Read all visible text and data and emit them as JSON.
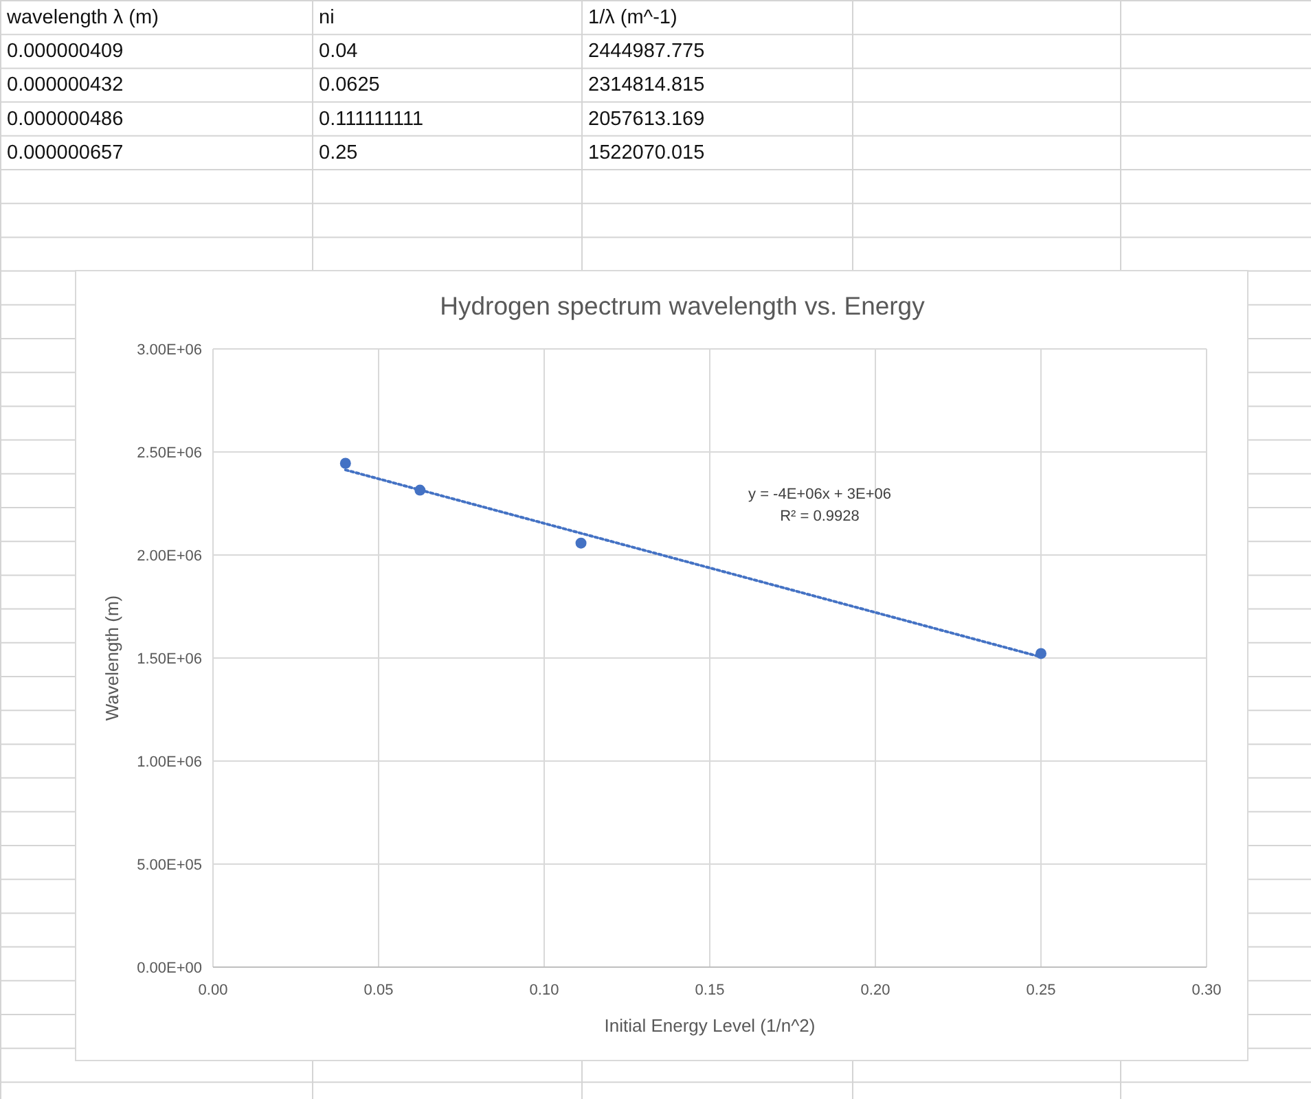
{
  "chart_data": [
    {
      "type": "other",
      "categories": [
        "wavelength λ (m)",
        "ni",
        "1/λ (m^-1)"
      ],
      "annotations": [
        "0.000000409",
        "0.04",
        "2444987.775",
        "0.000000432",
        "0.0625",
        "2314814.815",
        "0.000000486",
        "0.111111111",
        "2057613.169",
        "0.000000657",
        "0.25",
        "1522070.015"
      ]
    },
    {
      "type": "scatter",
      "title": "Hydrogen spectrum wavelength vs. Energy",
      "xlabel": "Initial Energy Level (1/n^2)",
      "ylabel": "Wavelength (m)",
      "xlim": [
        0,
        0.3
      ],
      "xticks": [
        {
          "value": 0,
          "label": "0.00"
        },
        {
          "value": 0.05,
          "label": "0.05"
        },
        {
          "value": 0.1,
          "label": "0.10"
        },
        {
          "value": 0.15,
          "label": "0.15"
        },
        {
          "value": 0.2,
          "label": "0.20"
        },
        {
          "value": 0.25,
          "label": "0.25"
        },
        {
          "value": 0.3,
          "label": "0.30"
        }
      ],
      "ylim": [
        0,
        3000000
      ],
      "yticks": [
        {
          "value": 0,
          "label": "0.00E+00"
        },
        {
          "value": 500000,
          "label": "5.00E+05"
        },
        {
          "value": 1000000,
          "label": "1.00E+06"
        },
        {
          "value": 1500000,
          "label": "1.50E+06"
        },
        {
          "value": 2000000,
          "label": "2.00E+06"
        },
        {
          "value": 2500000,
          "label": "2.50E+06"
        },
        {
          "value": 3000000,
          "label": "3.00E+06"
        }
      ],
      "grid": true,
      "marker": "circle",
      "series": [
        {
          "type": "scatter",
          "color": "#4472c4",
          "x": [
            0.04,
            0.0625,
            0.111111111,
            0.25
          ],
          "values": [
            2444987.775,
            2314814.815,
            2057613.169,
            1522070.015
          ]
        },
        {
          "type": "line",
          "color": "#4472c4",
          "line_style": "dotted",
          "marker": "none",
          "x": [
            0.04,
            0.25
          ],
          "values": [
            2413000,
            1505000
          ]
        }
      ],
      "annotations": [
        "y = -4E+06x + 3E+06",
        "R² = 0.9928"
      ]
    }
  ]
}
